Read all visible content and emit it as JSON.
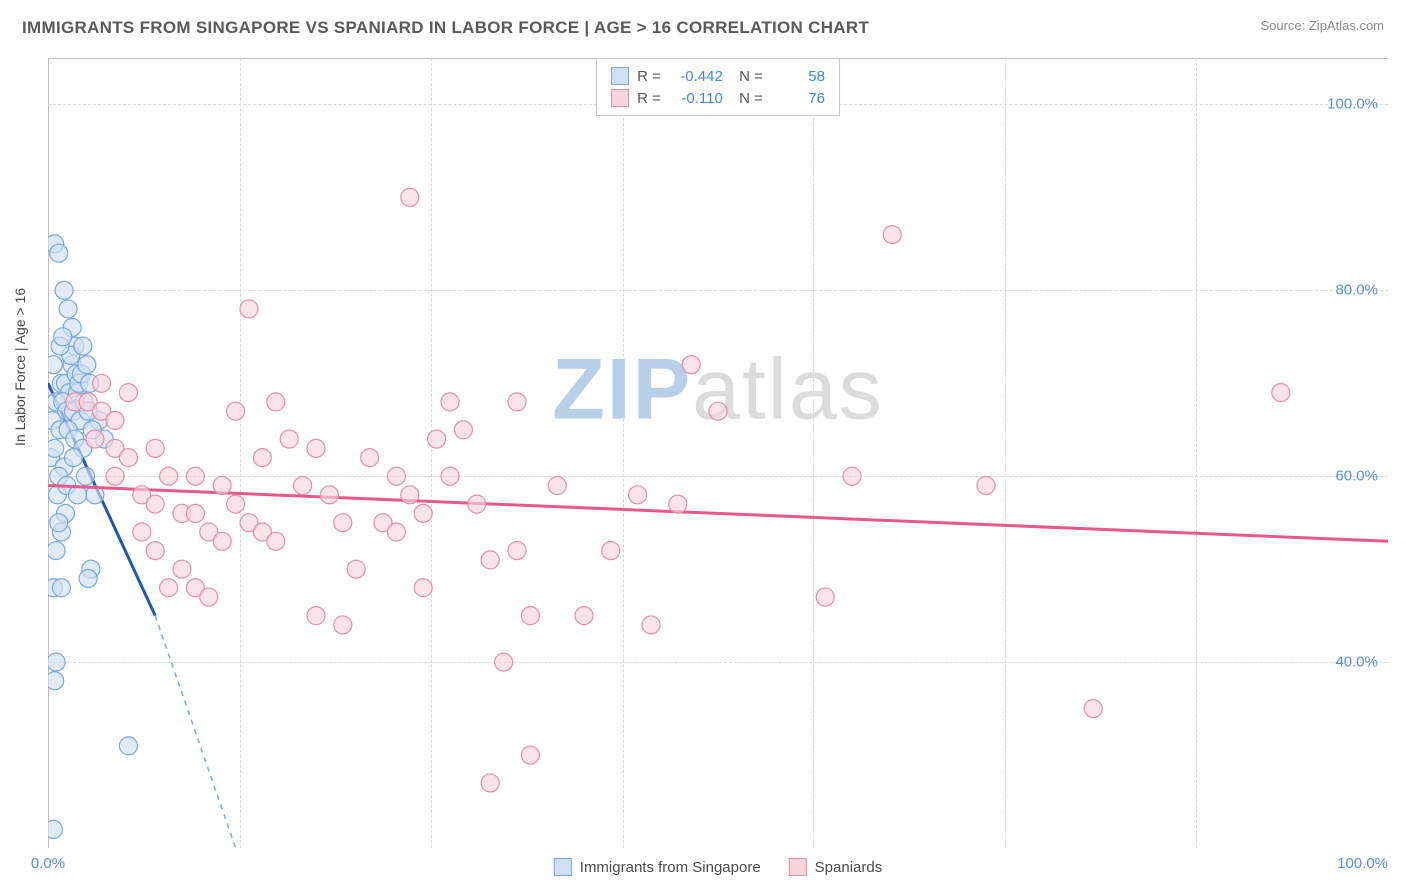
{
  "header": {
    "title": "IMMIGRANTS FROM SINGAPORE VS SPANIARD IN LABOR FORCE | AGE > 16 CORRELATION CHART",
    "source": "Source: ZipAtlas.com"
  },
  "chart": {
    "type": "scatter",
    "ylabel": "In Labor Force | Age > 16",
    "xlim": [
      0,
      100
    ],
    "ylim": [
      20,
      105
    ],
    "xtick_labels": {
      "min": "0.0%",
      "max": "100.0%"
    },
    "ytick_labels": [
      "40.0%",
      "60.0%",
      "80.0%",
      "100.0%"
    ],
    "ytick_values": [
      40,
      60,
      80,
      100
    ],
    "grid_v_positions": [
      14.3,
      28.6,
      42.9,
      57.1,
      71.4,
      85.7
    ],
    "grid_color": "#d8d8d8",
    "background_color": "#ffffff",
    "watermark": {
      "text_a": "ZIP",
      "text_b": "atlas",
      "color_a": "#b8cfe8",
      "color_b": "#dcdcdc"
    },
    "series": [
      {
        "name": "Immigrants from Singapore",
        "marker_fill": "#cfe0f3",
        "marker_stroke": "#7aa8d8",
        "line_color": "#2058b0",
        "line_dash_color": "#7aa8d8",
        "marker_radius": 9,
        "R": "-0.442",
        "N": "58",
        "trend": {
          "x1": 0,
          "y1": 70,
          "x2": 8,
          "y2": 45
        },
        "trend_dash": {
          "x1": 8,
          "y1": 45,
          "x2": 14,
          "y2": 20
        },
        "points": [
          [
            0.5,
            85
          ],
          [
            0.8,
            84
          ],
          [
            1.2,
            80
          ],
          [
            1.5,
            78
          ],
          [
            1.8,
            76
          ],
          [
            2.0,
            74
          ],
          [
            0.4,
            72
          ],
          [
            1.0,
            70
          ],
          [
            1.3,
            70
          ],
          [
            1.6,
            69
          ],
          [
            2.2,
            69
          ],
          [
            0.6,
            68
          ],
          [
            1.1,
            68
          ],
          [
            1.4,
            67
          ],
          [
            1.9,
            67
          ],
          [
            2.4,
            66
          ],
          [
            0.3,
            66
          ],
          [
            0.9,
            65
          ],
          [
            1.5,
            65
          ],
          [
            2.0,
            64
          ],
          [
            2.6,
            63
          ],
          [
            0.2,
            62
          ],
          [
            1.2,
            61
          ],
          [
            2.8,
            60
          ],
          [
            0.7,
            58
          ],
          [
            3.5,
            58
          ],
          [
            1.0,
            54
          ],
          [
            3.2,
            50
          ],
          [
            3.0,
            49
          ],
          [
            0.4,
            48
          ],
          [
            0.6,
            40
          ],
          [
            0.5,
            38
          ],
          [
            6.0,
            31
          ],
          [
            0.4,
            22
          ],
          [
            1.8,
            72
          ],
          [
            2.1,
            71
          ],
          [
            2.3,
            70
          ],
          [
            1.7,
            73
          ],
          [
            0.9,
            74
          ],
          [
            1.1,
            75
          ],
          [
            0.5,
            63
          ],
          [
            0.8,
            60
          ],
          [
            1.3,
            56
          ],
          [
            3.8,
            66
          ],
          [
            4.2,
            64
          ],
          [
            2.5,
            71
          ],
          [
            2.7,
            68
          ],
          [
            3.0,
            67
          ],
          [
            0.6,
            52
          ],
          [
            1.4,
            59
          ],
          [
            2.9,
            72
          ],
          [
            3.3,
            65
          ],
          [
            1.9,
            62
          ],
          [
            2.2,
            58
          ],
          [
            0.8,
            55
          ],
          [
            1.0,
            48
          ],
          [
            2.6,
            74
          ],
          [
            3.1,
            70
          ]
        ]
      },
      {
        "name": "Spaniards",
        "marker_fill": "#f8d6de",
        "marker_stroke": "#e090a8",
        "line_color": "#e85a8a",
        "marker_radius": 9,
        "R": "-0.110",
        "N": "76",
        "trend": {
          "x1": 0,
          "y1": 59,
          "x2": 100,
          "y2": 53
        },
        "points": [
          [
            2,
            68
          ],
          [
            3,
            68
          ],
          [
            4,
            67
          ],
          [
            5,
            66
          ],
          [
            3.5,
            64
          ],
          [
            5,
            63
          ],
          [
            6,
            62
          ],
          [
            7,
            54
          ],
          [
            8,
            52
          ],
          [
            9,
            48
          ],
          [
            7,
            58
          ],
          [
            8,
            57
          ],
          [
            10,
            56
          ],
          [
            11,
            56
          ],
          [
            12,
            54
          ],
          [
            10,
            50
          ],
          [
            11,
            48
          ],
          [
            12,
            47
          ],
          [
            13,
            59
          ],
          [
            14,
            67
          ],
          [
            15,
            78
          ],
          [
            14,
            57
          ],
          [
            15,
            55
          ],
          [
            16,
            54
          ],
          [
            17,
            53
          ],
          [
            16,
            62
          ],
          [
            17,
            68
          ],
          [
            18,
            64
          ],
          [
            20,
            63
          ],
          [
            21,
            58
          ],
          [
            22,
            55
          ],
          [
            23,
            50
          ],
          [
            20,
            45
          ],
          [
            22,
            44
          ],
          [
            25,
            55
          ],
          [
            26,
            54
          ],
          [
            26,
            60
          ],
          [
            27,
            90
          ],
          [
            27,
            58
          ],
          [
            28,
            48
          ],
          [
            29,
            64
          ],
          [
            30,
            68
          ],
          [
            30,
            60
          ],
          [
            31,
            65
          ],
          [
            32,
            57
          ],
          [
            33,
            51
          ],
          [
            34,
            40
          ],
          [
            35,
            68
          ],
          [
            35,
            52
          ],
          [
            36,
            30
          ],
          [
            36,
            45
          ],
          [
            33,
            27
          ],
          [
            38,
            59
          ],
          [
            40,
            45
          ],
          [
            42,
            52
          ],
          [
            45,
            44
          ],
          [
            47,
            57
          ],
          [
            48,
            72
          ],
          [
            4,
            70
          ],
          [
            6,
            69
          ],
          [
            5,
            60
          ],
          [
            58,
            47
          ],
          [
            60,
            60
          ],
          [
            63,
            86
          ],
          [
            70,
            59
          ],
          [
            78,
            35
          ],
          [
            92,
            69
          ],
          [
            8,
            63
          ],
          [
            9,
            60
          ],
          [
            11,
            60
          ],
          [
            13,
            53
          ],
          [
            19,
            59
          ],
          [
            24,
            62
          ],
          [
            28,
            56
          ],
          [
            44,
            58
          ],
          [
            50,
            67
          ]
        ]
      }
    ],
    "legend_top": {
      "labels": {
        "R": "R =",
        "N": "N ="
      }
    },
    "legend_bottom": [
      "Immigrants from Singapore",
      "Spaniards"
    ]
  }
}
